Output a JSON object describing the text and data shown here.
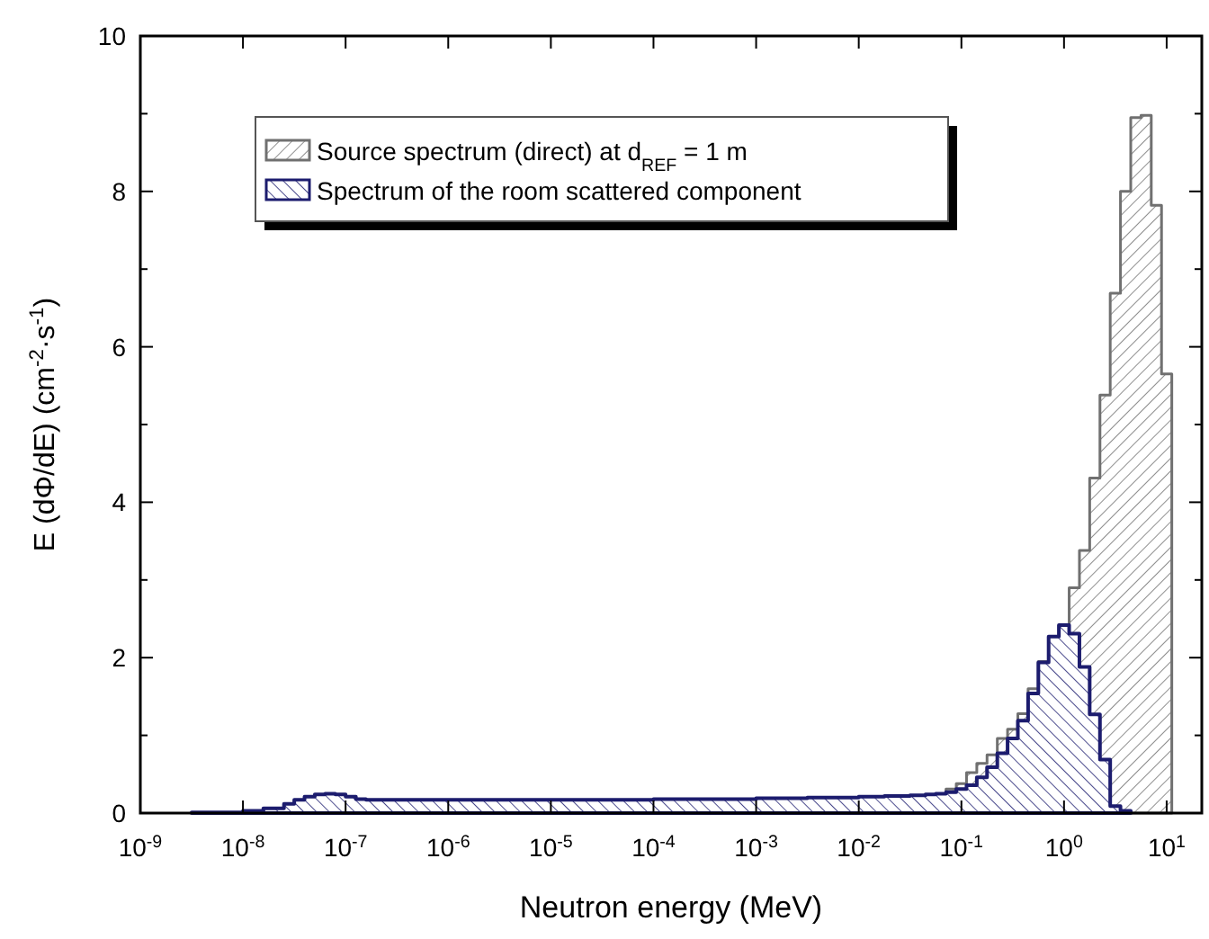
{
  "chart_data": {
    "type": "area",
    "xlabel": "Neutron energy (MeV)",
    "ylabel": "E (dΦ/dE) (cm$^{-2}$·s$^{-1}$)",
    "log": "x",
    "xlim": [
      1e-09,
      22
    ],
    "ylim": [
      0,
      10
    ],
    "xticks": [
      {
        "value": 1e-09,
        "label": "10$^{-9}$"
      },
      {
        "value": 1e-08,
        "label": "10$^{-8}$"
      },
      {
        "value": 1e-07,
        "label": "10$^{-7}$"
      },
      {
        "value": 1e-06,
        "label": "10$^{-6}$"
      },
      {
        "value": 1e-05,
        "label": "10$^{-5}$"
      },
      {
        "value": 0.0001,
        "label": "10$^{-4}$"
      },
      {
        "value": 0.001,
        "label": "10$^{-3}$"
      },
      {
        "value": 0.01,
        "label": "10$^{-2}$"
      },
      {
        "value": 0.1,
        "label": "10$^{-1}$"
      },
      {
        "value": 1,
        "label": "10$^{0}$"
      },
      {
        "value": 10,
        "label": "10$^{1}$"
      }
    ],
    "yticks": [
      0,
      {
        "value": 1,
        "label": null
      },
      2,
      {
        "value": 3,
        "label": null
      },
      4,
      {
        "value": 5,
        "label": null
      },
      6,
      {
        "value": 7,
        "label": null
      },
      8,
      {
        "value": 9,
        "label": null
      },
      10
    ],
    "grid": false,
    "legend": "top left",
    "series": [
      {
        "name": "Source spectrum (direct) at d$_{REF}$ = 1 m",
        "color": "#707070",
        "x": [
          0.05623,
          0.07079,
          0.08913,
          0.1122,
          0.1413,
          0.1778,
          0.2239,
          0.2818,
          0.3548,
          0.4467,
          0.5623,
          0.7079,
          0.8913,
          1.122,
          1.413,
          1.778,
          2.239,
          2.818,
          3.548,
          4.467,
          5.623,
          7.079,
          8.913,
          11.22
        ],
        "values": [
          0.25,
          0.31,
          0.38,
          0.52,
          0.64,
          0.75,
          0.96,
          1.08,
          1.28,
          1.6,
          1.95,
          2.04,
          2.42,
          2.9,
          3.38,
          4.31,
          5.38,
          6.69,
          8.0,
          8.95,
          8.98,
          7.82,
          5.65,
          0
        ]
      },
      {
        "name": "Spectrum of the room scattered component",
        "color": "#1c1c6e",
        "x": [
          3.16e-09,
          1e-08,
          1.58e-08,
          2.51e-08,
          3.16e-08,
          3.98e-08,
          5.01e-08,
          6.31e-08,
          7.94e-08,
          1e-07,
          1.26e-07,
          1.58e-07,
          3.16e-07,
          1e-06,
          1e-05,
          0.0001,
          0.001,
          0.00316,
          0.01,
          0.01778,
          0.03162,
          0.04467,
          0.05623,
          0.07079,
          0.08913,
          0.1122,
          0.1413,
          0.1778,
          0.2239,
          0.2818,
          0.3548,
          0.4467,
          0.5623,
          0.7079,
          0.8913,
          1.122,
          1.413,
          1.778,
          2.239,
          2.818,
          3.548,
          4.467
        ],
        "values": [
          0.01,
          0.03,
          0.06,
          0.12,
          0.17,
          0.21,
          0.24,
          0.25,
          0.24,
          0.21,
          0.18,
          0.17,
          0.17,
          0.17,
          0.17,
          0.18,
          0.19,
          0.2,
          0.21,
          0.22,
          0.23,
          0.24,
          0.25,
          0.27,
          0.31,
          0.36,
          0.46,
          0.59,
          0.77,
          0.96,
          1.19,
          1.54,
          1.94,
          2.27,
          2.42,
          2.31,
          1.88,
          1.27,
          0.69,
          0.09,
          0.03,
          0
        ]
      }
    ]
  }
}
